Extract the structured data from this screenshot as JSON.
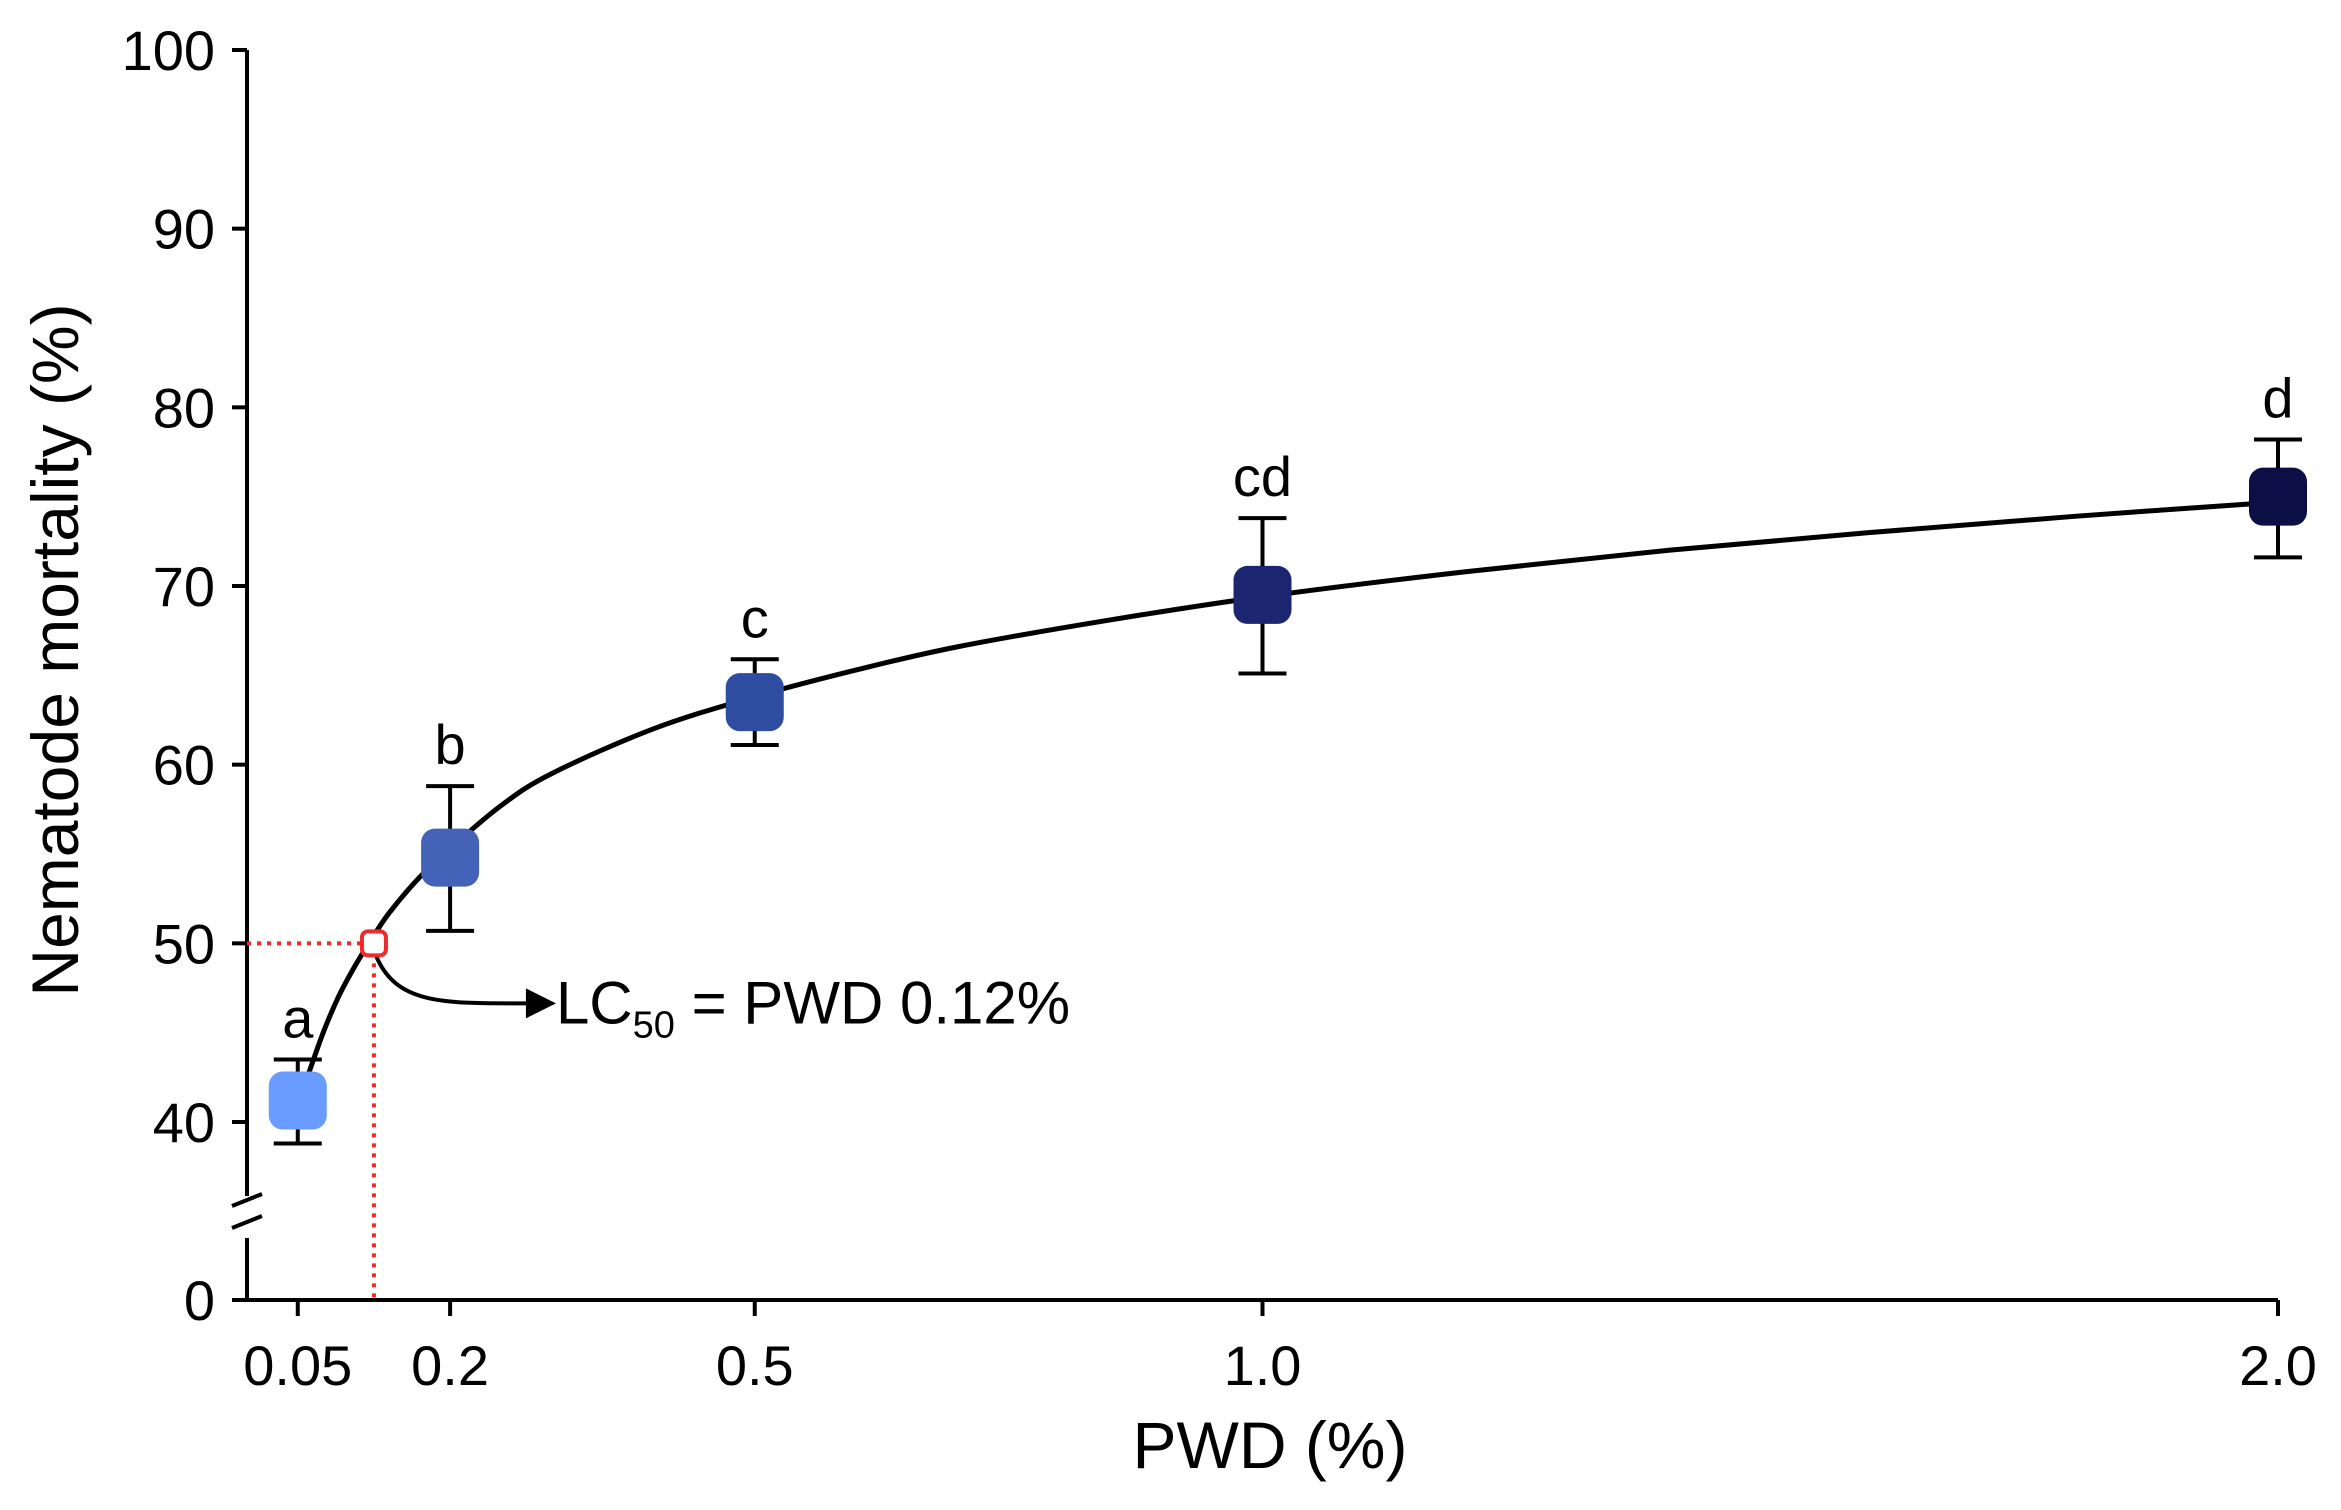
{
  "chart_data": {
    "type": "scatter",
    "title": "",
    "xlabel": "PWD (%)",
    "ylabel": "Nematode mortality (%)",
    "x_ticks": [
      "0.05",
      "0.2",
      "0.5",
      "1.0",
      "2.0"
    ],
    "x_tick_values": [
      0.05,
      0.2,
      0.5,
      1.0,
      2.0
    ],
    "y_ticks": [
      "0",
      "40",
      "50",
      "60",
      "70",
      "80",
      "90",
      "100"
    ],
    "y_tick_values": [
      0,
      40,
      50,
      60,
      70,
      80,
      90,
      100
    ],
    "xlim": [
      0.0,
      2.0
    ],
    "ylim": [
      0,
      100
    ],
    "axis_break": "between 0 and 40 on y-axis",
    "series": [
      {
        "name": "PWD",
        "x": [
          0.05,
          0.2,
          0.5,
          1.0,
          2.0
        ],
        "y": [
          41.2,
          54.8,
          63.5,
          69.5,
          75.0
        ],
        "err_upper": [
          43.5,
          58.8,
          65.9,
          73.8,
          78.2
        ],
        "err_lower": [
          38.8,
          50.7,
          61.1,
          65.1,
          71.6
        ],
        "labels": [
          "a",
          "b",
          "c",
          "cd",
          "d"
        ],
        "colors": [
          "#6a9bff",
          "#4462b8",
          "#2e4da0",
          "#1b2570",
          "#0c0f45"
        ]
      }
    ],
    "fit_curve": {
      "x": [
        0.06,
        0.075,
        0.09,
        0.105,
        0.12,
        0.14,
        0.17,
        0.2,
        0.25,
        0.3,
        0.4,
        0.5,
        0.6,
        0.7,
        0.85,
        1.0,
        1.2,
        1.4,
        1.6,
        1.8,
        2.0
      ],
      "y": [
        42.6,
        45.0,
        47.0,
        48.6,
        50.0,
        51.7,
        53.7,
        55.3,
        57.7,
        59.5,
        62.0,
        63.8,
        65.3,
        66.6,
        68.1,
        69.4,
        70.8,
        72.0,
        73.0,
        73.9,
        74.7
      ]
    },
    "lc50": {
      "x": 0.125,
      "y": 50,
      "text": "LC",
      "subscript": "50",
      "suffix": " = PWD 0.12%"
    }
  }
}
